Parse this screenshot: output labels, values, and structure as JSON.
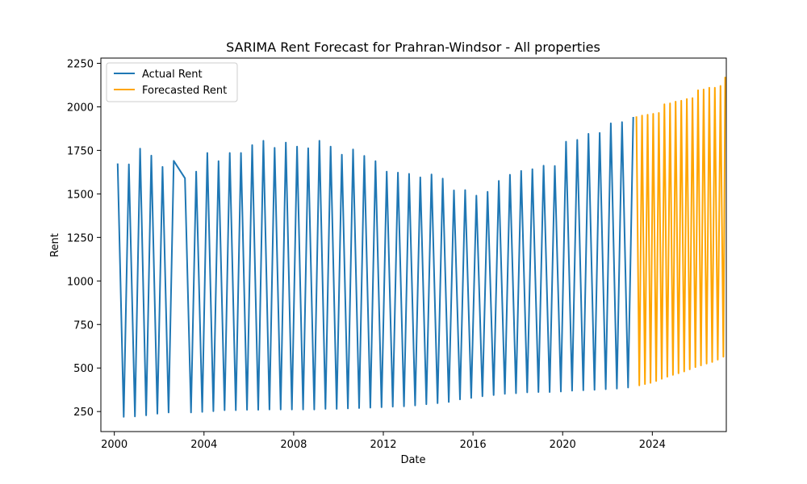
{
  "chart_data": {
    "type": "line",
    "title": "SARIMA Rent Forecast for Prahran-Windsor - All properties",
    "xlabel": "Date",
    "ylabel": "Rent",
    "xlim": [
      1999.4,
      2027.3
    ],
    "ylim": [
      135,
      2280
    ],
    "xticks": [
      2000,
      2004,
      2008,
      2012,
      2016,
      2020,
      2024
    ],
    "yticks": [
      250,
      500,
      750,
      1000,
      1250,
      1500,
      1750,
      2000,
      2250
    ],
    "grid": false,
    "legend_position": "top-left",
    "series": [
      {
        "name": "Actual Rent",
        "color": "#1f77b4",
        "points": [
          [
            2000.15,
            1675
          ],
          [
            2000.42,
            220
          ],
          [
            2000.65,
            1670
          ],
          [
            2000.92,
            222
          ],
          [
            2001.15,
            1760
          ],
          [
            2001.42,
            228
          ],
          [
            2001.65,
            1720
          ],
          [
            2001.92,
            238
          ],
          [
            2002.15,
            1655
          ],
          [
            2002.42,
            245
          ],
          [
            2002.65,
            1690
          ],
          [
            2003.15,
            1590
          ],
          [
            2003.42,
            245
          ],
          [
            2003.65,
            1628
          ],
          [
            2003.92,
            248
          ],
          [
            2004.15,
            1735
          ],
          [
            2004.42,
            252
          ],
          [
            2004.65,
            1688
          ],
          [
            2004.92,
            258
          ],
          [
            2005.15,
            1735
          ],
          [
            2005.42,
            258
          ],
          [
            2005.65,
            1735
          ],
          [
            2005.92,
            260
          ],
          [
            2006.15,
            1780
          ],
          [
            2006.42,
            260
          ],
          [
            2006.65,
            1805
          ],
          [
            2006.92,
            262
          ],
          [
            2007.15,
            1765
          ],
          [
            2007.42,
            262
          ],
          [
            2007.65,
            1795
          ],
          [
            2007.92,
            262
          ],
          [
            2008.15,
            1772
          ],
          [
            2008.42,
            262
          ],
          [
            2008.65,
            1762
          ],
          [
            2008.92,
            262
          ],
          [
            2009.15,
            1805
          ],
          [
            2009.42,
            265
          ],
          [
            2009.65,
            1772
          ],
          [
            2009.92,
            265
          ],
          [
            2010.15,
            1725
          ],
          [
            2010.42,
            268
          ],
          [
            2010.65,
            1755
          ],
          [
            2010.92,
            270
          ],
          [
            2011.15,
            1718
          ],
          [
            2011.42,
            272
          ],
          [
            2011.65,
            1688
          ],
          [
            2011.92,
            275
          ],
          [
            2012.15,
            1628
          ],
          [
            2012.42,
            278
          ],
          [
            2012.65,
            1622
          ],
          [
            2012.92,
            280
          ],
          [
            2013.15,
            1615
          ],
          [
            2013.42,
            285
          ],
          [
            2013.65,
            1595
          ],
          [
            2013.92,
            292
          ],
          [
            2014.15,
            1612
          ],
          [
            2014.42,
            298
          ],
          [
            2014.65,
            1588
          ],
          [
            2014.92,
            305
          ],
          [
            2015.15,
            1520
          ],
          [
            2015.42,
            320
          ],
          [
            2015.65,
            1522
          ],
          [
            2015.92,
            328
          ],
          [
            2016.15,
            1490
          ],
          [
            2016.42,
            338
          ],
          [
            2016.65,
            1512
          ],
          [
            2016.92,
            345
          ],
          [
            2017.15,
            1575
          ],
          [
            2017.42,
            352
          ],
          [
            2017.65,
            1610
          ],
          [
            2017.92,
            355
          ],
          [
            2018.15,
            1632
          ],
          [
            2018.42,
            360
          ],
          [
            2018.65,
            1642
          ],
          [
            2018.92,
            362
          ],
          [
            2019.15,
            1662
          ],
          [
            2019.42,
            362
          ],
          [
            2019.65,
            1660
          ],
          [
            2019.92,
            365
          ],
          [
            2020.15,
            1800
          ],
          [
            2020.42,
            370
          ],
          [
            2020.65,
            1810
          ],
          [
            2020.92,
            372
          ],
          [
            2021.15,
            1845
          ],
          [
            2021.42,
            375
          ],
          [
            2021.65,
            1850
          ],
          [
            2021.92,
            378
          ],
          [
            2022.15,
            1905
          ],
          [
            2022.42,
            382
          ],
          [
            2022.65,
            1912
          ],
          [
            2022.92,
            388
          ],
          [
            2023.15,
            1942
          ]
        ]
      },
      {
        "name": "Forecasted Rent",
        "color": "#ffa500",
        "points": [
          [
            2023.29,
            1945
          ],
          [
            2023.42,
            400
          ],
          [
            2023.54,
            1950
          ],
          [
            2023.67,
            408
          ],
          [
            2023.79,
            1955
          ],
          [
            2023.92,
            415
          ],
          [
            2024.04,
            1960
          ],
          [
            2024.17,
            425
          ],
          [
            2024.29,
            1965
          ],
          [
            2024.42,
            438
          ],
          [
            2024.54,
            2015
          ],
          [
            2024.67,
            450
          ],
          [
            2024.79,
            2020
          ],
          [
            2024.92,
            460
          ],
          [
            2025.04,
            2030
          ],
          [
            2025.17,
            470
          ],
          [
            2025.29,
            2035
          ],
          [
            2025.42,
            480
          ],
          [
            2025.54,
            2045
          ],
          [
            2025.67,
            492
          ],
          [
            2025.79,
            2050
          ],
          [
            2025.92,
            505
          ],
          [
            2026.04,
            2095
          ],
          [
            2026.17,
            515
          ],
          [
            2026.29,
            2100
          ],
          [
            2026.42,
            525
          ],
          [
            2026.54,
            2110
          ],
          [
            2026.67,
            535
          ],
          [
            2026.79,
            2110
          ],
          [
            2026.92,
            548
          ],
          [
            2027.04,
            2120
          ],
          [
            2027.17,
            565
          ],
          [
            2027.25,
            2172
          ]
        ]
      }
    ]
  }
}
